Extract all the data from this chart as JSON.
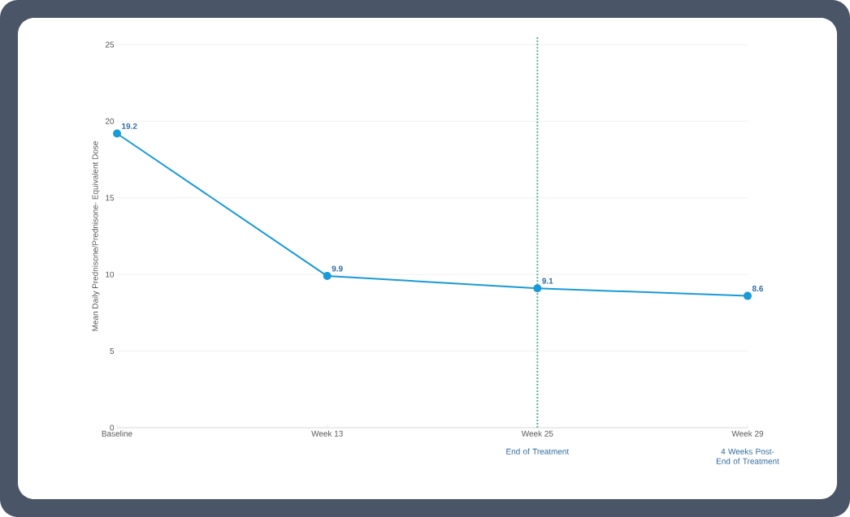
{
  "chart_data": {
    "type": "line",
    "categories": [
      "Baseline",
      "Week 13",
      "Week 25",
      "Week 29"
    ],
    "values": [
      19.2,
      9.9,
      9.1,
      8.6
    ],
    "color": "#1a9ad6",
    "ylabel": "Mean Daily Prednisone/Prednisone- Equivalent Dose",
    "ylim": [
      0,
      25
    ],
    "yticks": [
      0,
      5,
      10,
      15,
      20,
      25
    ],
    "grid": "y",
    "marker": "circle",
    "line_style": "solid",
    "data_labels": true,
    "ref_lines": [
      {
        "axis": "x",
        "value": "Week 25",
        "color": "#4fb39b",
        "line_style": "dotted"
      }
    ],
    "annotations": [
      "End of Treatment",
      "4 Weeks Post-End of Treatment"
    ]
  }
}
